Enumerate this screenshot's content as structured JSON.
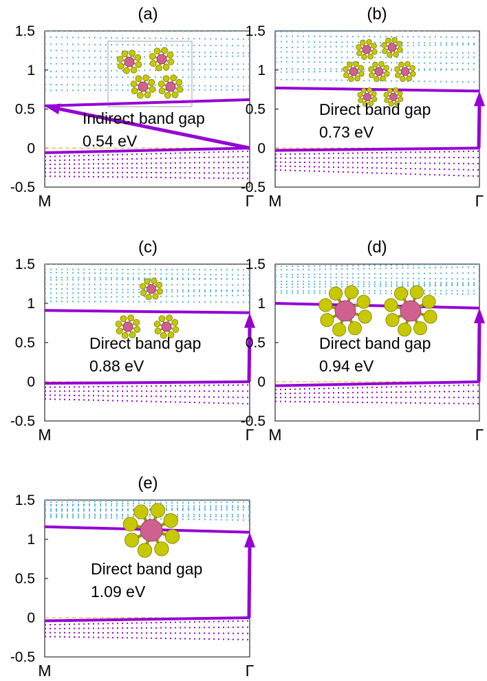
{
  "chart_data": [
    {
      "type": "line",
      "panel_label": "(a)",
      "x_ticks": [
        "M",
        "Γ"
      ],
      "yticks": [
        "1.5",
        "1",
        "0.5",
        "0",
        "-0.5"
      ],
      "ylim": [
        -0.5,
        1.5
      ],
      "series": [
        {
          "role": "conduction_band_minimum",
          "x": [
            0,
            1
          ],
          "y": [
            0.54,
            0.62
          ]
        },
        {
          "role": "valence_band_maximum",
          "x": [
            0,
            1
          ],
          "y": [
            -0.06,
            0.0
          ]
        }
      ],
      "annotation": {
        "line1": "Indirect band gap",
        "line2": "0.54 eV"
      },
      "arrow": {
        "from": [
          "Γ",
          0.0
        ],
        "to": [
          "M",
          0.54
        ]
      },
      "inset": "cluster structure"
    },
    {
      "type": "line",
      "panel_label": "(b)",
      "x_ticks": [
        "M",
        "Γ"
      ],
      "yticks": [
        "1.5",
        "1",
        "0.5",
        "0",
        "-0.5"
      ],
      "ylim": [
        -0.5,
        1.5
      ],
      "series": [
        {
          "role": "conduction_band_minimum",
          "x": [
            0,
            1
          ],
          "y": [
            0.77,
            0.73
          ]
        },
        {
          "role": "valence_band_maximum",
          "x": [
            0,
            1
          ],
          "y": [
            -0.03,
            0.0
          ]
        }
      ],
      "annotation": {
        "line1": "Direct band gap",
        "line2": "0.73 eV"
      },
      "arrow": {
        "from": [
          "Γ",
          0.0
        ],
        "to": [
          "Γ",
          0.73
        ]
      },
      "inset": "cluster structure"
    },
    {
      "type": "line",
      "panel_label": "(c)",
      "x_ticks": [
        "M",
        "Γ"
      ],
      "yticks": [
        "1.5",
        "1",
        "0.5",
        "0",
        "-0.5"
      ],
      "ylim": [
        -0.5,
        1.5
      ],
      "series": [
        {
          "role": "conduction_band_minimum",
          "x": [
            0,
            1
          ],
          "y": [
            0.91,
            0.88
          ]
        },
        {
          "role": "valence_band_maximum",
          "x": [
            0,
            1
          ],
          "y": [
            -0.02,
            0.0
          ]
        }
      ],
      "annotation": {
        "line1": "Direct band gap",
        "line2": "0.88 eV"
      },
      "arrow": {
        "from": [
          "Γ",
          0.0
        ],
        "to": [
          "Γ",
          0.88
        ]
      },
      "inset": "cluster structure"
    },
    {
      "type": "line",
      "panel_label": "(d)",
      "x_ticks": [
        "M",
        "Γ"
      ],
      "yticks": [
        "1.5",
        "1",
        "0.5",
        "0",
        "-0.5"
      ],
      "ylim": [
        -0.5,
        1.5
      ],
      "series": [
        {
          "role": "conduction_band_minimum",
          "x": [
            0,
            1
          ],
          "y": [
            1.0,
            0.94
          ]
        },
        {
          "role": "valence_band_maximum",
          "x": [
            0,
            1
          ],
          "y": [
            -0.05,
            0.0
          ]
        }
      ],
      "annotation": {
        "line1": "Direct band gap",
        "line2": "0.94 eV"
      },
      "arrow": {
        "from": [
          "Γ",
          0.0
        ],
        "to": [
          "Γ",
          0.94
        ]
      },
      "inset": "cluster structure"
    },
    {
      "type": "line",
      "panel_label": "(e)",
      "x_ticks": [
        "M",
        "Γ"
      ],
      "yticks": [
        "1.5",
        "1",
        "0.5",
        "0",
        "-0.5"
      ],
      "ylim": [
        -0.5,
        1.5
      ],
      "series": [
        {
          "role": "conduction_band_minimum",
          "x": [
            0,
            1
          ],
          "y": [
            1.16,
            1.09
          ]
        },
        {
          "role": "valence_band_maximum",
          "x": [
            0,
            1
          ],
          "y": [
            -0.04,
            0.0
          ]
        }
      ],
      "annotation": {
        "line1": "Direct band gap",
        "line2": "1.09 eV"
      },
      "arrow": {
        "from": [
          "Γ",
          0.0
        ],
        "to": [
          "Γ",
          1.09
        ]
      },
      "inset": "cluster structure"
    }
  ],
  "colors": {
    "highlight_band": "#9400D3",
    "conduction_bands": "#56B4E9",
    "valence_bands": "#9400D3",
    "fermi_level": "#E69F00",
    "atom_yellow": "#C8C800",
    "atom_pink": "#D06090"
  }
}
